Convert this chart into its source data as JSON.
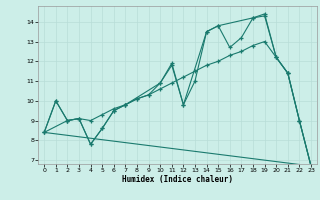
{
  "background_color": "#cceee8",
  "grid_color": "#b8ddd8",
  "line_color": "#1a7a6e",
  "xlabel": "Humidex (Indice chaleur)",
  "xlim": [
    -0.5,
    23.5
  ],
  "ylim": [
    6.8,
    14.8
  ],
  "xticks": [
    0,
    1,
    2,
    3,
    4,
    5,
    6,
    7,
    8,
    9,
    10,
    11,
    12,
    13,
    14,
    15,
    16,
    17,
    18,
    19,
    20,
    21,
    22,
    23
  ],
  "yticks": [
    7,
    8,
    9,
    10,
    11,
    12,
    13,
    14
  ],
  "series1": [
    [
      0,
      8.4
    ],
    [
      1,
      10.0
    ],
    [
      2,
      9.0
    ],
    [
      3,
      9.1
    ],
    [
      4,
      7.8
    ],
    [
      5,
      8.6
    ],
    [
      6,
      9.5
    ],
    [
      7,
      9.8
    ],
    [
      8,
      10.1
    ],
    [
      9,
      10.3
    ],
    [
      10,
      10.9
    ],
    [
      11,
      11.8
    ],
    [
      12,
      9.8
    ],
    [
      13,
      11.0
    ],
    [
      14,
      13.5
    ],
    [
      15,
      13.8
    ],
    [
      16,
      12.7
    ],
    [
      17,
      13.2
    ],
    [
      18,
      14.2
    ],
    [
      19,
      14.3
    ],
    [
      20,
      12.2
    ],
    [
      21,
      11.4
    ],
    [
      22,
      9.0
    ],
    [
      23,
      6.7
    ]
  ],
  "series2": [
    [
      0,
      8.4
    ],
    [
      1,
      10.0
    ],
    [
      2,
      9.0
    ],
    [
      3,
      9.1
    ],
    [
      4,
      9.0
    ],
    [
      5,
      9.3
    ],
    [
      6,
      9.6
    ],
    [
      7,
      9.8
    ],
    [
      8,
      10.1
    ],
    [
      9,
      10.3
    ],
    [
      10,
      10.6
    ],
    [
      11,
      10.9
    ],
    [
      12,
      11.2
    ],
    [
      13,
      11.5
    ],
    [
      14,
      11.8
    ],
    [
      15,
      12.0
    ],
    [
      16,
      12.3
    ],
    [
      17,
      12.5
    ],
    [
      18,
      12.8
    ],
    [
      19,
      13.0
    ],
    [
      20,
      12.2
    ],
    [
      21,
      11.4
    ],
    [
      22,
      9.0
    ],
    [
      23,
      6.7
    ]
  ],
  "series3": [
    [
      0,
      8.4
    ],
    [
      2,
      9.0
    ],
    [
      3,
      9.1
    ],
    [
      4,
      7.8
    ],
    [
      5,
      8.6
    ],
    [
      6,
      9.5
    ],
    [
      7,
      9.8
    ],
    [
      10,
      10.9
    ],
    [
      11,
      11.9
    ],
    [
      12,
      9.8
    ],
    [
      14,
      13.5
    ],
    [
      15,
      13.8
    ],
    [
      18,
      14.2
    ],
    [
      19,
      14.4
    ],
    [
      20,
      12.2
    ],
    [
      21,
      11.4
    ],
    [
      22,
      9.0
    ],
    [
      23,
      6.7
    ]
  ],
  "series4": [
    [
      0,
      8.4
    ],
    [
      23,
      6.7
    ]
  ]
}
